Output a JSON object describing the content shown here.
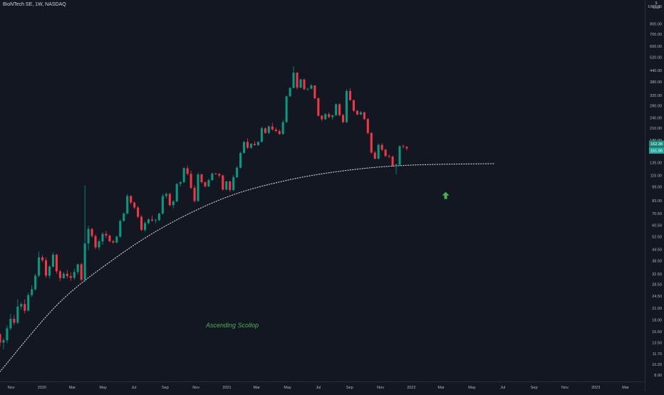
{
  "header": {
    "symbol_title": "BioNTech SE, 1W, NASDAQ",
    "currency": "USD",
    "currency_prefix": "$"
  },
  "annotations": {
    "pattern_label": "Ascending Scollop"
  },
  "colors": {
    "background": "#131722",
    "up": "#26a69a",
    "down": "#ef5350",
    "up_candle": "#089981",
    "down_candle": "#f23645",
    "curve": "#d1d4dc",
    "label_text": "#4caf50",
    "arrow": "#4caf50",
    "axis_text": "#b2b5be"
  },
  "price_tags": {
    "last_price": "162.38",
    "countdown": "161.96"
  },
  "chart_data": {
    "type": "candlestick",
    "title": "BioNTech SE, 1W, NASDAQ",
    "scale": "log",
    "ylim": [
      8.5,
      1020
    ],
    "y_ticks": [
      "1000.00",
      "800.00",
      "700.00",
      "600.00",
      "520.00",
      "440.00",
      "380.00",
      "320.00",
      "280.00",
      "240.00",
      "210.00",
      "180.00",
      "155.00",
      "135.00",
      "115.00",
      "99.00",
      "83.00",
      "70.50",
      "60.50",
      "52.50",
      "44.50",
      "38.50",
      "32.50",
      "28.50",
      "24.50",
      "21.00",
      "18.00",
      "15.50",
      "13.50",
      "11.70",
      "10.20",
      "8.90"
    ],
    "y_tick_values": [
      1000,
      800,
      700,
      600,
      520,
      440,
      380,
      320,
      280,
      240,
      210,
      180,
      155,
      135,
      115,
      99,
      83,
      70.5,
      60.5,
      52.5,
      44.5,
      38.5,
      32.5,
      28.5,
      24.5,
      21,
      18,
      15.5,
      13.5,
      11.7,
      10.2,
      8.9
    ],
    "x_ticks": [
      "Nov",
      "2020",
      "Mar",
      "May",
      "Jul",
      "Sep",
      "Nov",
      "2021",
      "Mar",
      "May",
      "Jul",
      "Sep",
      "Nov",
      "2022",
      "Mar",
      "May",
      "Jul",
      "Sep",
      "Nov",
      "2023",
      "Mar"
    ],
    "x_tick_dates": [
      "2019-11-01",
      "2020-01-01",
      "2020-03-01",
      "2020-05-01",
      "2020-07-01",
      "2020-09-01",
      "2020-11-01",
      "2021-01-01",
      "2021-03-01",
      "2021-05-01",
      "2021-07-01",
      "2021-09-01",
      "2021-11-01",
      "2022-01-01",
      "2022-03-01",
      "2022-05-01",
      "2022-07-01",
      "2022-09-01",
      "2022-11-01",
      "2023-01-01",
      "2023-03-01"
    ],
    "x_start": "2019-10-10",
    "x_end": "2023-04-08",
    "ohlc_start": "2019-10-10",
    "ohlc_interval_days": 7,
    "ohlc": [
      [
        15,
        15.2,
        12.8,
        13.5
      ],
      [
        13.5,
        14.3,
        12.4,
        13.9
      ],
      [
        13.9,
        16.8,
        13.4,
        16.2
      ],
      [
        16.2,
        19.5,
        15.8,
        18.3
      ],
      [
        18.3,
        19.2,
        16.9,
        17.4
      ],
      [
        17.4,
        23.5,
        17.1,
        21.4
      ],
      [
        21.4,
        22.6,
        20.6,
        22.1
      ],
      [
        22.1,
        23.5,
        19.6,
        20.3
      ],
      [
        20.3,
        25.5,
        20.1,
        24.8
      ],
      [
        24.8,
        28.1,
        24.2,
        26.7
      ],
      [
        26.7,
        32.6,
        26.2,
        31.8
      ],
      [
        31.8,
        43.3,
        31.1,
        40.2
      ],
      [
        40.2,
        41.3,
        37.8,
        38.7
      ],
      [
        38.7,
        40.1,
        30.9,
        31.8
      ],
      [
        31.8,
        36.4,
        30.7,
        35.7
      ],
      [
        35.7,
        42.9,
        35.3,
        41.6
      ],
      [
        41.6,
        42.1,
        32.6,
        33.6
      ],
      [
        33.6,
        34.3,
        29.6,
        30.8
      ],
      [
        30.8,
        33.3,
        30.5,
        32.6
      ],
      [
        32.6,
        34.2,
        30.6,
        31.6
      ],
      [
        31.6,
        33.2,
        29.7,
        30.9
      ],
      [
        30.9,
        34.7,
        30.1,
        33.3
      ],
      [
        33.3,
        37.1,
        32.2,
        36.8
      ],
      [
        36.8,
        37.5,
        29.6,
        30.2
      ],
      [
        30.2,
        100.9,
        29.3,
        48
      ],
      [
        48,
        60.2,
        44,
        57.8
      ],
      [
        57.8,
        58.7,
        51.6,
        52.8
      ],
      [
        52.8,
        54,
        44.6,
        45.7
      ],
      [
        45.7,
        50.7,
        44.2,
        49.3
      ],
      [
        49.3,
        55.4,
        47.2,
        54.3
      ],
      [
        54.3,
        56.4,
        51.4,
        53.1
      ],
      [
        53.1,
        53.8,
        48.7,
        49.4
      ],
      [
        49.4,
        50.3,
        47.9,
        48.6
      ],
      [
        48.6,
        53.1,
        48,
        52.4
      ],
      [
        52.4,
        65.3,
        51.8,
        64.1
      ],
      [
        64.1,
        71.6,
        63.6,
        70.5
      ],
      [
        70.5,
        90.6,
        69.5,
        88.2
      ],
      [
        88.2,
        89.2,
        79.1,
        81
      ],
      [
        81,
        82.2,
        74.5,
        76.1
      ],
      [
        76.1,
        77.7,
        66.4,
        67.6
      ],
      [
        67.6,
        68.9,
        56.3,
        57.1
      ],
      [
        57.1,
        63.7,
        55.9,
        62.3
      ],
      [
        62.3,
        66.3,
        61.4,
        65.3
      ],
      [
        65.3,
        68.6,
        63.4,
        64.4
      ],
      [
        64.4,
        66.1,
        62.3,
        64.7
      ],
      [
        64.7,
        71.2,
        64,
        70.4
      ],
      [
        70.4,
        90.5,
        69.4,
        88.1
      ],
      [
        88.1,
        92.1,
        85.6,
        90.6
      ],
      [
        90.6,
        91.9,
        77.3,
        78.4
      ],
      [
        78.4,
        83.8,
        75.4,
        82.3
      ],
      [
        82.3,
        103.9,
        81.5,
        103
      ],
      [
        103,
        106.6,
        99.4,
        105.2
      ],
      [
        105.2,
        127.5,
        104.2,
        126
      ],
      [
        126,
        130.6,
        114.7,
        117.1
      ],
      [
        117.1,
        121.8,
        96.2,
        97.9
      ],
      [
        97.9,
        101.2,
        81.3,
        82.7
      ],
      [
        82.7,
        118.9,
        82,
        116.3
      ],
      [
        116.3,
        117.5,
        103.6,
        105.2
      ],
      [
        105.2,
        106.3,
        98.3,
        99.8
      ],
      [
        99.8,
        110,
        98.8,
        108.1
      ],
      [
        108.1,
        119.3,
        107.4,
        117.4
      ],
      [
        117.4,
        119,
        116.1,
        116.9
      ],
      [
        116.9,
        118.4,
        112,
        114.6
      ],
      [
        114.6,
        116.3,
        94.3,
        95.8
      ],
      [
        95.8,
        107.2,
        94.7,
        106.2
      ],
      [
        106.2,
        107.2,
        92.9,
        95.2
      ],
      [
        95.2,
        115.4,
        93.8,
        112.1
      ],
      [
        112.1,
        129.3,
        111.1,
        126.7
      ],
      [
        126.7,
        155.8,
        125.5,
        153
      ],
      [
        153,
        177.6,
        151.7,
        176.3
      ],
      [
        176.3,
        184.6,
        161.3,
        163.6
      ],
      [
        163.6,
        173.8,
        161.6,
        172.1
      ],
      [
        172.1,
        178.2,
        168,
        169.3
      ],
      [
        169.3,
        177.7,
        167.4,
        176.3
      ],
      [
        176.3,
        214,
        175.5,
        209.9
      ],
      [
        209.9,
        212.5,
        195.6,
        197.8
      ],
      [
        197.8,
        216.7,
        194.8,
        215.1
      ],
      [
        215.1,
        224.9,
        203.7,
        206.6
      ],
      [
        206.6,
        212.3,
        199.9,
        202.6
      ],
      [
        202.6,
        207.1,
        192.5,
        195.2
      ],
      [
        195.2,
        233.5,
        193.1,
        227
      ],
      [
        227,
        318.4,
        225.5,
        316.2
      ],
      [
        316.2,
        356.5,
        314.8,
        351.4
      ],
      [
        351.4,
        464.6,
        350.3,
        428.1
      ],
      [
        428.1,
        429.7,
        344.9,
        353.2
      ],
      [
        353.2,
        397.7,
        351.2,
        392.1
      ],
      [
        392.1,
        396.3,
        342,
        346.5
      ],
      [
        346.5,
        351.4,
        338.9,
        348.5
      ],
      [
        348.5,
        369.2,
        345.4,
        363.6
      ],
      [
        363.6,
        364.3,
        303.8,
        308.6
      ],
      [
        308.6,
        310.2,
        243.5,
        246.6
      ],
      [
        246.6,
        248.6,
        229.9,
        235.6
      ],
      [
        235.6,
        255.5,
        233.7,
        251.6
      ],
      [
        251.6,
        256.7,
        238.6,
        242.4
      ],
      [
        242.4,
        249.4,
        235.2,
        248.1
      ],
      [
        248.1,
        288.1,
        245.6,
        285.8
      ],
      [
        285.8,
        288.5,
        244.3,
        248.6
      ],
      [
        248.6,
        252.2,
        224.2,
        227.1
      ],
      [
        227.1,
        346.1,
        224.9,
        338.7
      ],
      [
        338.7,
        350.9,
        298.3,
        301.3
      ],
      [
        301.3,
        302.7,
        258.3,
        262.6
      ],
      [
        262.6,
        265.3,
        247.8,
        250.5
      ],
      [
        250.5,
        261.9,
        248.9,
        257.8
      ],
      [
        257.8,
        259.1,
        232.9,
        236.4
      ],
      [
        236.4,
        238.8,
        194.4,
        197.7
      ],
      [
        197.7,
        199.9,
        151.7,
        153.8
      ],
      [
        153.8,
        157,
        140.7,
        142.2
      ],
      [
        142.2,
        172.5,
        140.8,
        169.7
      ],
      [
        169.7,
        173.5,
        156.5,
        159.4
      ],
      [
        159.4,
        161.6,
        145.4,
        147.1
      ],
      [
        147.1,
        150,
        143.3,
        146.1
      ],
      [
        146.1,
        147.7,
        128.2,
        129.7
      ],
      [
        129.7,
        133.5,
        116.2,
        131.8
      ],
      [
        131.8,
        169.1,
        129.6,
        166.9
      ],
      [
        166.9,
        170.4,
        162.2,
        165.6
      ],
      [
        165.6,
        167.1,
        158.2,
        162.4
      ]
    ],
    "ascending_scallop_curve": [
      [
        "2019-10-10",
        9.3
      ],
      [
        "2020-02-01",
        22
      ],
      [
        "2020-05-15",
        38
      ],
      [
        "2020-09-01",
        60
      ],
      [
        "2021-01-01",
        87
      ],
      [
        "2021-05-01",
        108
      ],
      [
        "2021-09-01",
        123
      ],
      [
        "2022-01-01",
        131
      ],
      [
        "2022-06-15",
        133.5
      ]
    ],
    "signal_arrow": {
      "date": "2022-03-10",
      "value": 88,
      "direction": "up"
    }
  }
}
